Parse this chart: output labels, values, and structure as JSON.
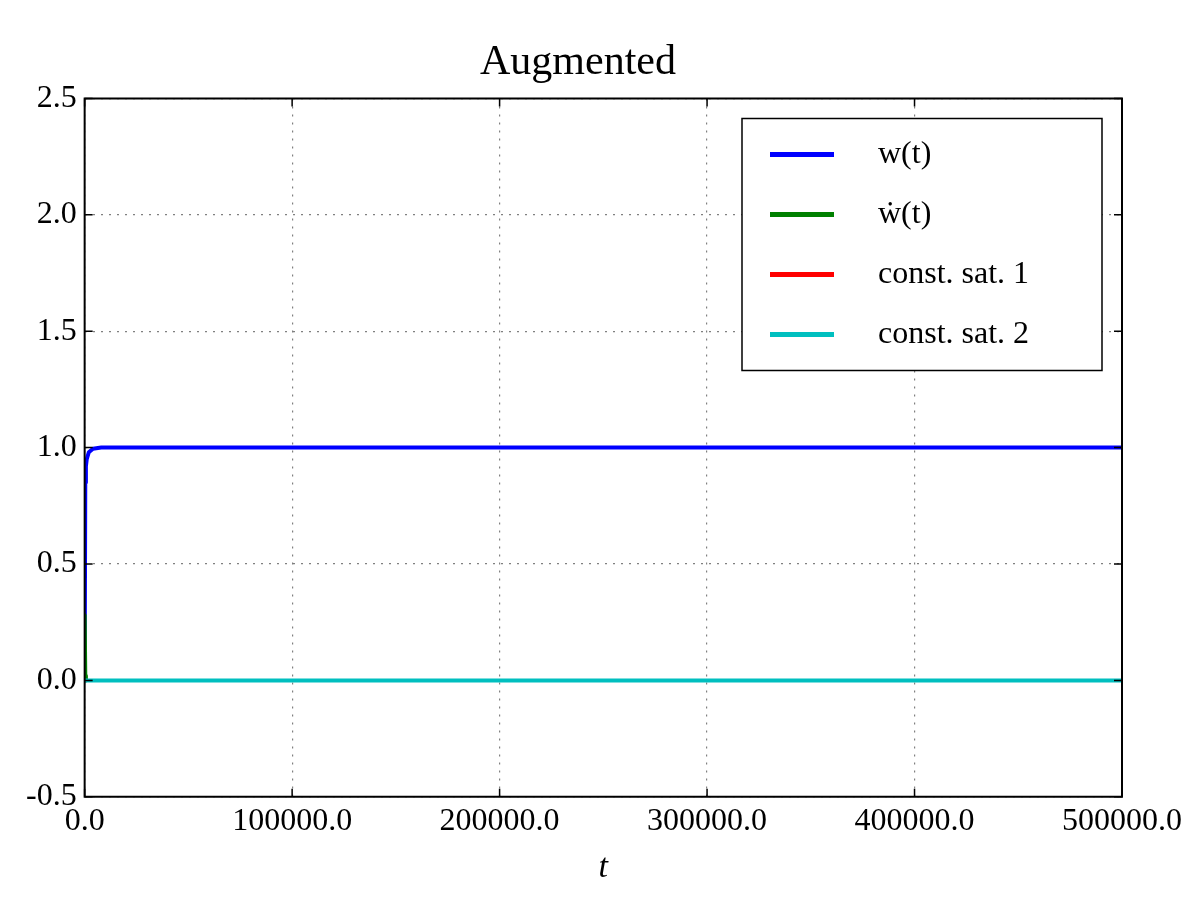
{
  "chart_data": {
    "type": "line",
    "title": "Augmented",
    "xlabel": "t",
    "xlim": [
      0,
      500000
    ],
    "xticks": [
      {
        "value": 0,
        "label": "0.0"
      },
      {
        "value": 100000,
        "label": "100000.0"
      },
      {
        "value": 200000,
        "label": "200000.0"
      },
      {
        "value": 300000,
        "label": "300000.0"
      },
      {
        "value": 400000,
        "label": "400000.0"
      },
      {
        "value": 500000,
        "label": "500000.0"
      }
    ],
    "ylim": [
      -0.5,
      2.5
    ],
    "yticks": [
      {
        "value": -0.5,
        "label": "-0.5"
      },
      {
        "value": 0,
        "label": "0.0"
      },
      {
        "value": 0.5,
        "label": "0.5"
      },
      {
        "value": 1,
        "label": "1.0"
      },
      {
        "value": 1.5,
        "label": "1.5"
      },
      {
        "value": 2,
        "label": "2.0"
      },
      {
        "value": 2.5,
        "label": "2.5"
      }
    ],
    "grid": true,
    "legend": "top right",
    "line_style": "solid",
    "marker": "none",
    "series": [
      {
        "name": "w(t)",
        "color": "#0000ff",
        "x": [
          0,
          300,
          600,
          1000,
          2000,
          4000,
          8000,
          500000
        ],
        "values": [
          0,
          0.85,
          0.92,
          0.95,
          0.98,
          0.995,
          1,
          1
        ]
      },
      {
        "name": "ẇ(t)",
        "color": "#008000",
        "x": [
          0,
          300,
          600
        ],
        "values": [
          0.28,
          0.02,
          0
        ]
      },
      {
        "name": "const. sat. 1",
        "color": "#ff0000"
      },
      {
        "name": "const. sat. 2",
        "color": "#00bfbf",
        "x": [
          0,
          500000
        ],
        "values": [
          0,
          0
        ]
      }
    ]
  }
}
